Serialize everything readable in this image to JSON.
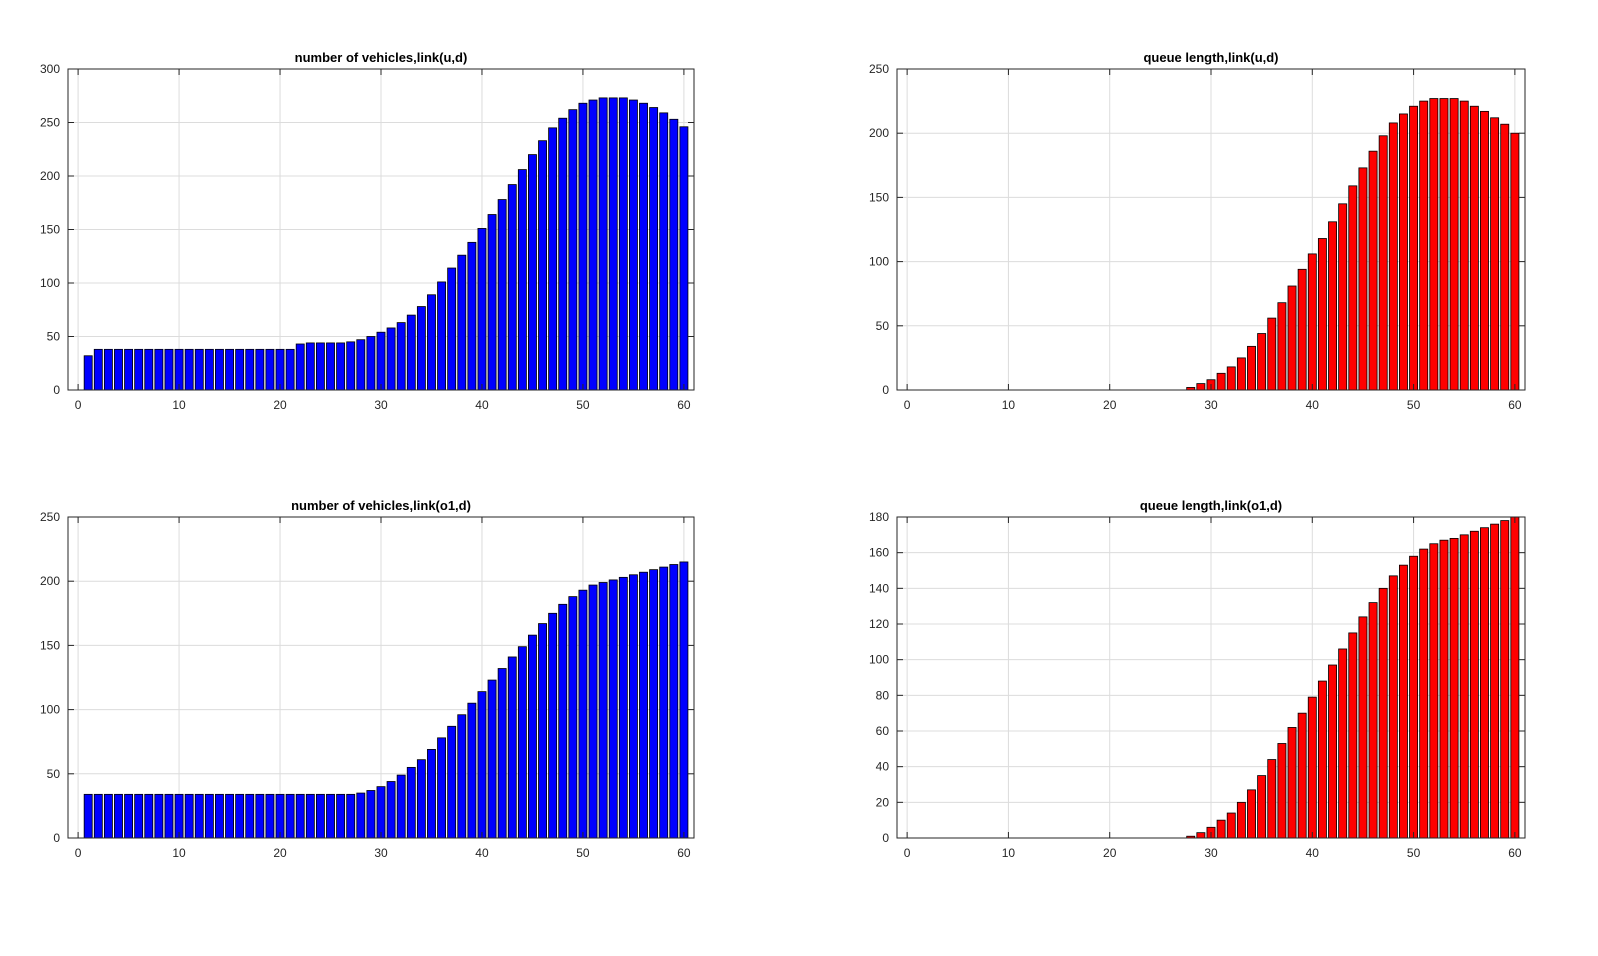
{
  "chart_data": [
    {
      "type": "bar",
      "title": "number of vehicles,link(u,d)",
      "xlabel": "",
      "ylabel": "",
      "xlim": [
        -1,
        61
      ],
      "ylim": [
        0,
        300
      ],
      "xticks": [
        0,
        10,
        20,
        30,
        40,
        50,
        60
      ],
      "xtick_labels": [
        "0",
        "10",
        "20",
        "30",
        "40",
        "50",
        "60"
      ],
      "yticks": [
        0,
        50,
        100,
        150,
        200,
        250,
        300
      ],
      "ytick_labels": [
        "0",
        "50",
        "100",
        "150",
        "200",
        "250",
        "300"
      ],
      "grid": true,
      "bar_color": "#0000ff",
      "x": [
        1,
        2,
        3,
        4,
        5,
        6,
        7,
        8,
        9,
        10,
        11,
        12,
        13,
        14,
        15,
        16,
        17,
        18,
        19,
        20,
        21,
        22,
        23,
        24,
        25,
        26,
        27,
        28,
        29,
        30,
        31,
        32,
        33,
        34,
        35,
        36,
        37,
        38,
        39,
        40,
        41,
        42,
        43,
        44,
        45,
        46,
        47,
        48,
        49,
        50,
        51,
        52,
        53,
        54,
        55,
        56,
        57,
        58,
        59,
        60
      ],
      "values": [
        32,
        38,
        38,
        38,
        38,
        38,
        38,
        38,
        38,
        38,
        38,
        38,
        38,
        38,
        38,
        38,
        38,
        38,
        38,
        38,
        38,
        43,
        44,
        44,
        44,
        44,
        45,
        47,
        50,
        54,
        58,
        63,
        70,
        78,
        89,
        101,
        114,
        126,
        138,
        151,
        164,
        178,
        192,
        206,
        220,
        233,
        245,
        254,
        262,
        268,
        271,
        273,
        273,
        273,
        271,
        268,
        264,
        259,
        253,
        246
      ]
    },
    {
      "type": "bar",
      "title": "queue length,link(u,d)",
      "xlabel": "",
      "ylabel": "",
      "xlim": [
        -1,
        61
      ],
      "ylim": [
        0,
        250
      ],
      "xticks": [
        0,
        10,
        20,
        30,
        40,
        50,
        60
      ],
      "xtick_labels": [
        "0",
        "10",
        "20",
        "30",
        "40",
        "50",
        "60"
      ],
      "yticks": [
        0,
        50,
        100,
        150,
        200,
        250
      ],
      "ytick_labels": [
        "0",
        "50",
        "100",
        "150",
        "200",
        "250"
      ],
      "grid": true,
      "bar_color": "#ff0000",
      "x": [
        1,
        2,
        3,
        4,
        5,
        6,
        7,
        8,
        9,
        10,
        11,
        12,
        13,
        14,
        15,
        16,
        17,
        18,
        19,
        20,
        21,
        22,
        23,
        24,
        25,
        26,
        27,
        28,
        29,
        30,
        31,
        32,
        33,
        34,
        35,
        36,
        37,
        38,
        39,
        40,
        41,
        42,
        43,
        44,
        45,
        46,
        47,
        48,
        49,
        50,
        51,
        52,
        53,
        54,
        55,
        56,
        57,
        58,
        59,
        60
      ],
      "values": [
        0,
        0,
        0,
        0,
        0,
        0,
        0,
        0,
        0,
        0,
        0,
        0,
        0,
        0,
        0,
        0,
        0,
        0,
        0,
        0,
        0,
        0,
        0,
        0,
        0,
        0,
        0,
        2,
        5,
        8,
        13,
        18,
        25,
        34,
        44,
        56,
        68,
        81,
        94,
        106,
        118,
        131,
        145,
        159,
        173,
        186,
        198,
        208,
        215,
        221,
        225,
        227,
        227,
        227,
        225,
        221,
        217,
        212,
        207,
        200
      ]
    },
    {
      "type": "bar",
      "title": "number of vehicles,link(o1,d)",
      "xlabel": "",
      "ylabel": "",
      "xlim": [
        -1,
        61
      ],
      "ylim": [
        0,
        250
      ],
      "xticks": [
        0,
        10,
        20,
        30,
        40,
        50,
        60
      ],
      "xtick_labels": [
        "0",
        "10",
        "20",
        "30",
        "40",
        "50",
        "60"
      ],
      "yticks": [
        0,
        50,
        100,
        150,
        200,
        250
      ],
      "ytick_labels": [
        "0",
        "50",
        "100",
        "150",
        "200",
        "250"
      ],
      "grid": true,
      "bar_color": "#0000ff",
      "x": [
        1,
        2,
        3,
        4,
        5,
        6,
        7,
        8,
        9,
        10,
        11,
        12,
        13,
        14,
        15,
        16,
        17,
        18,
        19,
        20,
        21,
        22,
        23,
        24,
        25,
        26,
        27,
        28,
        29,
        30,
        31,
        32,
        33,
        34,
        35,
        36,
        37,
        38,
        39,
        40,
        41,
        42,
        43,
        44,
        45,
        46,
        47,
        48,
        49,
        50,
        51,
        52,
        53,
        54,
        55,
        56,
        57,
        58,
        59,
        60
      ],
      "values": [
        34,
        34,
        34,
        34,
        34,
        34,
        34,
        34,
        34,
        34,
        34,
        34,
        34,
        34,
        34,
        34,
        34,
        34,
        34,
        34,
        34,
        34,
        34,
        34,
        34,
        34,
        34,
        35,
        37,
        40,
        44,
        49,
        55,
        61,
        69,
        78,
        87,
        96,
        105,
        114,
        123,
        132,
        141,
        149,
        158,
        167,
        175,
        182,
        188,
        193,
        197,
        199,
        201,
        203,
        205,
        207,
        209,
        211,
        213,
        215
      ]
    },
    {
      "type": "bar",
      "title": "queue length,link(o1,d)",
      "xlabel": "",
      "ylabel": "",
      "xlim": [
        -1,
        61
      ],
      "ylim": [
        0,
        180
      ],
      "xticks": [
        0,
        10,
        20,
        30,
        40,
        50,
        60
      ],
      "xtick_labels": [
        "0",
        "10",
        "20",
        "30",
        "40",
        "50",
        "60"
      ],
      "yticks": [
        0,
        20,
        40,
        60,
        80,
        100,
        120,
        140,
        160,
        180
      ],
      "ytick_labels": [
        "0",
        "20",
        "40",
        "60",
        "80",
        "100",
        "120",
        "140",
        "160",
        "180"
      ],
      "grid": true,
      "bar_color": "#ff0000",
      "x": [
        1,
        2,
        3,
        4,
        5,
        6,
        7,
        8,
        9,
        10,
        11,
        12,
        13,
        14,
        15,
        16,
        17,
        18,
        19,
        20,
        21,
        22,
        23,
        24,
        25,
        26,
        27,
        28,
        29,
        30,
        31,
        32,
        33,
        34,
        35,
        36,
        37,
        38,
        39,
        40,
        41,
        42,
        43,
        44,
        45,
        46,
        47,
        48,
        49,
        50,
        51,
        52,
        53,
        54,
        55,
        56,
        57,
        58,
        59,
        60
      ],
      "values": [
        0,
        0,
        0,
        0,
        0,
        0,
        0,
        0,
        0,
        0,
        0,
        0,
        0,
        0,
        0,
        0,
        0,
        0,
        0,
        0,
        0,
        0,
        0,
        0,
        0,
        0,
        0,
        1,
        3,
        6,
        10,
        14,
        20,
        27,
        35,
        44,
        53,
        62,
        70,
        79,
        88,
        97,
        106,
        115,
        124,
        132,
        140,
        147,
        153,
        158,
        162,
        165,
        167,
        168,
        170,
        172,
        174,
        176,
        178,
        180
      ]
    }
  ]
}
